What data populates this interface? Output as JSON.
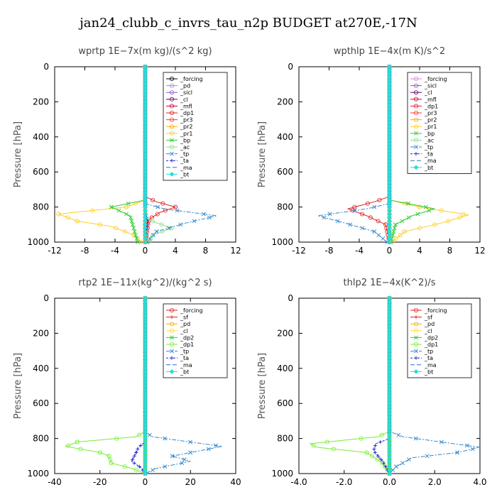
{
  "figure_title": "jan24_clubb_c_invrs_tau_n2p  BUDGET at270E,-17N",
  "chart_data": [
    {
      "type": "line",
      "title": "wprtp   1E−7x(m kg)/(s^2 kg)",
      "ylabel": "Pressure [hPa]",
      "xlim": [
        -12,
        12
      ],
      "ylim": [
        1000,
        0
      ],
      "xticks": [
        -12,
        -8,
        -4,
        0,
        4,
        8,
        12
      ],
      "xtick_labels": [
        "-12",
        "-8",
        "-4",
        "0",
        "4",
        "8",
        "12"
      ],
      "yticks": [
        0,
        200,
        400,
        600,
        800,
        1000
      ],
      "legend_position": "top-right",
      "series": [
        {
          "name": "_forcing",
          "color": "#000000",
          "marker": "o",
          "dash": "",
          "x": [
            0,
            0
          ],
          "y": [
            0,
            1000
          ]
        },
        {
          "name": "_pd",
          "color": "#aa88cc",
          "marker": "o",
          "dash": "",
          "x": [
            0,
            0
          ],
          "y": [
            0,
            1000
          ]
        },
        {
          "name": "_sicl",
          "color": "#8855cc",
          "marker": "o",
          "dash": "",
          "x": [
            0,
            0
          ],
          "y": [
            0,
            1000
          ]
        },
        {
          "name": "_cl",
          "color": "#660066",
          "marker": "o",
          "dash": "",
          "x": [
            0,
            0
          ],
          "y": [
            0,
            1000
          ]
        },
        {
          "name": "_mfl",
          "color": "#cc0033",
          "marker": "o",
          "dash": "",
          "x": [
            0,
            0
          ],
          "y": [
            0,
            1000
          ]
        },
        {
          "name": "_dp1",
          "color": "#dd2222",
          "marker": "o",
          "dash": "",
          "x": [
            0,
            0,
            1.5,
            4.0,
            2.0,
            0.5,
            0.2,
            0
          ],
          "y": [
            0,
            740,
            770,
            800,
            830,
            870,
            950,
            1000
          ]
        },
        {
          "name": "_pr3",
          "color": "#ff3333",
          "marker": "o",
          "dash": "",
          "x": [
            0,
            0
          ],
          "y": [
            0,
            1000
          ]
        },
        {
          "name": "_pr2",
          "color": "#ffaa00",
          "marker": "o",
          "dash": "",
          "x": [
            0,
            0
          ],
          "y": [
            0,
            1000
          ]
        },
        {
          "name": "_pr1",
          "color": "#ffcc22",
          "marker": "o",
          "dash": "",
          "x": [
            0,
            0,
            -2.5,
            -11.5,
            -9.0,
            -4.5,
            -1.5,
            -0.5
          ],
          "y": [
            0,
            760,
            800,
            840,
            880,
            910,
            960,
            1000
          ]
        },
        {
          "name": "_bp",
          "color": "#33cc33",
          "marker": "x",
          "dash": "",
          "x": [
            0,
            0,
            -4.5,
            -2.0,
            -1.0
          ],
          "y": [
            0,
            760,
            800,
            850,
            1000
          ]
        },
        {
          "name": "_ac",
          "color": "#88dd88",
          "marker": "o",
          "dash": "",
          "x": [
            0,
            0,
            1.5,
            3.5,
            1.0,
            0.5
          ],
          "y": [
            0,
            860,
            890,
            920,
            960,
            1000
          ]
        },
        {
          "name": "_tp",
          "color": "#3388cc",
          "marker": "x",
          "dash": "6,2,2,2",
          "x": [
            0,
            0,
            2.5,
            9.5,
            5.5,
            1.5,
            0.2
          ],
          "y": [
            0,
            780,
            810,
            850,
            890,
            940,
            1000
          ]
        },
        {
          "name": "_ta",
          "color": "#2222cc",
          "marker": "+",
          "dash": "3,2",
          "x": [
            0,
            0,
            0.3,
            0
          ],
          "y": [
            0,
            820,
            880,
            1000
          ]
        },
        {
          "name": "_ma",
          "color": "#2277cc",
          "marker": "",
          "dash": "6,3",
          "x": [
            0,
            0
          ],
          "y": [
            0,
            1000
          ]
        },
        {
          "name": "_bt",
          "color": "#22dddd",
          "marker": "d",
          "dash": "",
          "x": [
            0,
            0
          ],
          "y": [
            0,
            1000
          ]
        }
      ]
    },
    {
      "type": "line",
      "title": "wpthlp   1E−4x(m K)/s^2",
      "ylabel": "Pressure [hPa]",
      "xlim": [
        -12,
        12
      ],
      "ylim": [
        1000,
        0
      ],
      "xticks": [
        -12,
        -8,
        -4,
        0,
        4,
        8,
        12
      ],
      "xtick_labels": [
        "-12",
        "-8",
        "-4",
        "0",
        "4",
        "8",
        "12"
      ],
      "yticks": [
        0,
        200,
        400,
        600,
        800,
        1000
      ],
      "legend_position": "top-right",
      "series": [
        {
          "name": "_forcing",
          "color": "#cc88cc",
          "marker": "o",
          "dash": "",
          "x": [
            0,
            0
          ],
          "y": [
            0,
            1000
          ]
        },
        {
          "name": "_sicl",
          "color": "#8855cc",
          "marker": "o",
          "dash": "",
          "x": [
            0,
            0
          ],
          "y": [
            0,
            1000
          ]
        },
        {
          "name": "_cl",
          "color": "#660066",
          "marker": "o",
          "dash": "",
          "x": [
            0,
            0
          ],
          "y": [
            0,
            1000
          ]
        },
        {
          "name": "_mfl",
          "color": "#cc0033",
          "marker": "o",
          "dash": "",
          "x": [
            0,
            0
          ],
          "y": [
            0,
            1000
          ]
        },
        {
          "name": "_dp1",
          "color": "#dd2222",
          "marker": "o",
          "dash": "",
          "x": [
            0,
            0,
            -2.0,
            -5.5,
            -3.0,
            -0.5,
            0
          ],
          "y": [
            0,
            740,
            770,
            810,
            850,
            900,
            1000
          ]
        },
        {
          "name": "_pr3",
          "color": "#ff3333",
          "marker": "o",
          "dash": "",
          "x": [
            0,
            0
          ],
          "y": [
            0,
            1000
          ]
        },
        {
          "name": "_pr2",
          "color": "#ffaa00",
          "marker": "o",
          "dash": "",
          "x": [
            0,
            0
          ],
          "y": [
            0,
            1000
          ]
        },
        {
          "name": "_pr1",
          "color": "#ffcc22",
          "marker": "o",
          "dash": "",
          "x": [
            0,
            0,
            4.0,
            10.5,
            7.0,
            2.0,
            0.3
          ],
          "y": [
            0,
            760,
            800,
            845,
            890,
            940,
            1000
          ]
        },
        {
          "name": "_bp",
          "color": "#33cc33",
          "marker": "x",
          "dash": "",
          "x": [
            0,
            0,
            2.5,
            6.0,
            3.0,
            0.8,
            0.2
          ],
          "y": [
            0,
            760,
            780,
            810,
            850,
            900,
            1000
          ]
        },
        {
          "name": "_ac",
          "color": "#88dd88",
          "marker": "o",
          "dash": "",
          "x": [
            0,
            0
          ],
          "y": [
            0,
            1000
          ]
        },
        {
          "name": "_tp",
          "color": "#3388cc",
          "marker": "x",
          "dash": "6,2,2,2",
          "x": [
            0,
            0,
            -3.0,
            -9.5,
            -6.0,
            -2.0,
            -0.3
          ],
          "y": [
            0,
            780,
            810,
            850,
            890,
            940,
            1000
          ]
        },
        {
          "name": "_ta",
          "color": "#2222cc",
          "marker": "+",
          "dash": "3,2",
          "x": [
            0,
            0
          ],
          "y": [
            0,
            1000
          ]
        },
        {
          "name": "_ma",
          "color": "#2277cc",
          "marker": "",
          "dash": "6,3",
          "x": [
            0,
            0
          ],
          "y": [
            0,
            1000
          ]
        },
        {
          "name": "_bt",
          "color": "#22dddd",
          "marker": "d",
          "dash": "",
          "x": [
            0,
            0
          ],
          "y": [
            0,
            1000
          ]
        }
      ]
    },
    {
      "type": "line",
      "title": "rtp2   1E−11x(kg^2)/(kg^2 s)",
      "ylabel": "Pressure [hPa]",
      "xlim": [
        -40,
        40
      ],
      "ylim": [
        1000,
        0
      ],
      "xticks": [
        -40,
        -20,
        0,
        20,
        40
      ],
      "xtick_labels": [
        "-40",
        "-20",
        "0",
        "20",
        "40"
      ],
      "yticks": [
        0,
        200,
        400,
        600,
        800,
        1000
      ],
      "legend_position": "top-right",
      "series": [
        {
          "name": "_forcing",
          "color": "#dd2222",
          "marker": "o",
          "dash": "",
          "x": [
            0,
            0
          ],
          "y": [
            0,
            1000
          ]
        },
        {
          "name": "_sf",
          "color": "#dd2222",
          "marker": "+",
          "dash": "",
          "x": [
            0,
            0
          ],
          "y": [
            0,
            1000
          ]
        },
        {
          "name": "_pd",
          "color": "#ffaa00",
          "marker": "o",
          "dash": "",
          "x": [
            0,
            0
          ],
          "y": [
            0,
            1000
          ]
        },
        {
          "name": "_cl",
          "color": "#ffdd33",
          "marker": "o",
          "dash": "",
          "x": [
            0,
            0
          ],
          "y": [
            0,
            1000
          ]
        },
        {
          "name": "_dp2",
          "color": "#33cc33",
          "marker": "x",
          "dash": "",
          "x": [
            0,
            0
          ],
          "y": [
            0,
            1000
          ]
        },
        {
          "name": "_dp1",
          "color": "#77ee33",
          "marker": "o",
          "dash": "",
          "x": [
            0,
            0,
            -4.0,
            -30.0,
            -35.0,
            -20.0,
            -16.0,
            -15.0,
            -6.0,
            0
          ],
          "y": [
            0,
            760,
            790,
            820,
            845,
            880,
            900,
            940,
            970,
            1000
          ]
        },
        {
          "name": "_tp",
          "color": "#3388cc",
          "marker": "x",
          "dash": "6,2,2,2",
          "x": [
            0,
            0,
            3.0,
            34.0,
            20.0,
            12.0,
            20.0,
            5.0,
            0
          ],
          "y": [
            0,
            760,
            790,
            845,
            880,
            900,
            930,
            970,
            1000
          ]
        },
        {
          "name": "_ta",
          "color": "#2222cc",
          "marker": "+",
          "dash": "3,2",
          "x": [
            0,
            0,
            -3.0,
            -4.0,
            -6.0,
            -2.0,
            0
          ],
          "y": [
            0,
            820,
            850,
            880,
            930,
            965,
            1000
          ]
        },
        {
          "name": "_ma",
          "color": "#2277cc",
          "marker": "",
          "dash": "6,3",
          "x": [
            0,
            0
          ],
          "y": [
            0,
            1000
          ]
        },
        {
          "name": "_bt",
          "color": "#22dddd",
          "marker": "d",
          "dash": "",
          "x": [
            0,
            0
          ],
          "y": [
            0,
            1000
          ]
        }
      ]
    },
    {
      "type": "line",
      "title": "thlp2   1E−4x(K^2)/s",
      "ylabel": "Pressure [hPa]",
      "xlim": [
        -4.0,
        4.0
      ],
      "ylim": [
        1000,
        0
      ],
      "xticks": [
        -4.0,
        -2.0,
        0.0,
        2.0,
        4.0
      ],
      "xtick_labels": [
        "-4.0",
        "-2.0",
        "0.0",
        "2.0",
        "4.0"
      ],
      "yticks": [
        0,
        200,
        400,
        600,
        800,
        1000
      ],
      "legend_position": "top-right",
      "series": [
        {
          "name": "_forcing",
          "color": "#dd2222",
          "marker": "o",
          "dash": "",
          "x": [
            0,
            0
          ],
          "y": [
            0,
            1000
          ]
        },
        {
          "name": "_sf",
          "color": "#dd2222",
          "marker": "+",
          "dash": "",
          "x": [
            0,
            0
          ],
          "y": [
            0,
            1000
          ]
        },
        {
          "name": "_pd",
          "color": "#ffaa00",
          "marker": "o",
          "dash": "",
          "x": [
            0,
            0
          ],
          "y": [
            0,
            1000
          ]
        },
        {
          "name": "_cl",
          "color": "#ffdd33",
          "marker": "o",
          "dash": "",
          "x": [
            0,
            0
          ],
          "y": [
            0,
            1000
          ]
        },
        {
          "name": "_dp2",
          "color": "#33cc33",
          "marker": "x",
          "dash": "",
          "x": [
            0,
            0
          ],
          "y": [
            0,
            1000
          ]
        },
        {
          "name": "_dp1",
          "color": "#77ee33",
          "marker": "o",
          "dash": "",
          "x": [
            0,
            0,
            -0.5,
            -3.5,
            -3.2,
            -1.0,
            -0.3,
            0
          ],
          "y": [
            0,
            760,
            790,
            830,
            850,
            880,
            940,
            1000
          ]
        },
        {
          "name": "_tp",
          "color": "#3388cc",
          "marker": "x",
          "dash": "6,2,2,2",
          "x": [
            0,
            0,
            0.6,
            4.0,
            3.0,
            1.0,
            0.3,
            0
          ],
          "y": [
            0,
            760,
            790,
            850,
            880,
            910,
            960,
            1000
          ]
        },
        {
          "name": "_ta",
          "color": "#2222cc",
          "marker": "+",
          "dash": "3,2",
          "x": [
            0,
            0,
            -0.6,
            -0.7,
            -0.3,
            0
          ],
          "y": [
            0,
            800,
            830,
            870,
            930,
            1000
          ]
        },
        {
          "name": "_ma",
          "color": "#2277cc",
          "marker": "",
          "dash": "6,3",
          "x": [
            0,
            0
          ],
          "y": [
            0,
            1000
          ]
        },
        {
          "name": "_bt",
          "color": "#22dddd",
          "marker": "d",
          "dash": "",
          "x": [
            0,
            0
          ],
          "y": [
            0,
            1000
          ]
        }
      ]
    }
  ]
}
